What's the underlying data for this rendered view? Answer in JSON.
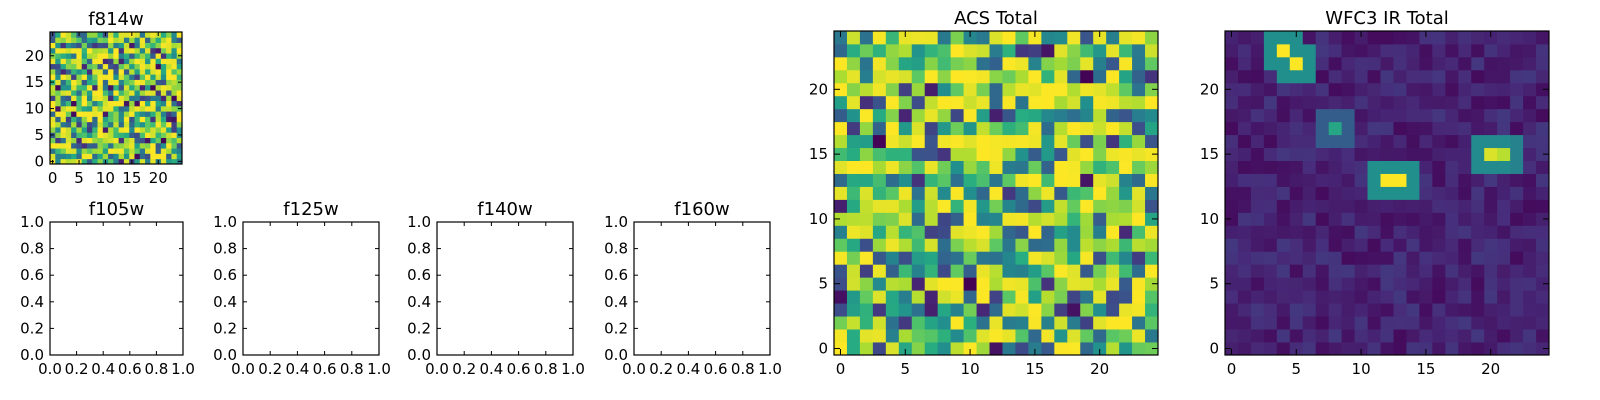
{
  "chart_data": [
    {
      "id": "f814w",
      "type": "heatmap",
      "title": "f814w",
      "grid_size": [
        25,
        25
      ],
      "xlim": [
        -0.5,
        24.5
      ],
      "ylim": [
        -0.5,
        24.5
      ],
      "xticks": [
        0,
        5,
        10,
        15,
        20
      ],
      "xtick_labels": [
        "0",
        "5",
        "10",
        "15",
        "20"
      ],
      "yticks": [
        0,
        5,
        10,
        15,
        20
      ],
      "ytick_labels": [
        "0",
        "5",
        "10",
        "15",
        "20"
      ],
      "colormap": "viridis",
      "pattern": "noise",
      "seed": 814
    },
    {
      "id": "f105w",
      "type": "empty",
      "title": "f105w",
      "xlim": [
        0,
        1
      ],
      "ylim": [
        0,
        1
      ],
      "xticks": [
        0,
        0.2,
        0.4,
        0.6,
        0.8,
        1.0
      ],
      "xtick_labels": [
        "0.0",
        "0.2",
        "0.4",
        "0.6",
        "0.8",
        "1.0"
      ],
      "yticks": [
        0,
        0.2,
        0.4,
        0.6,
        0.8,
        1.0
      ],
      "ytick_labels": [
        "0.0",
        "0.2",
        "0.4",
        "0.6",
        "0.8",
        "1.0"
      ]
    },
    {
      "id": "f125w",
      "type": "empty",
      "title": "f125w",
      "xlim": [
        0,
        1
      ],
      "ylim": [
        0,
        1
      ],
      "xticks": [
        0,
        0.2,
        0.4,
        0.6,
        0.8,
        1.0
      ],
      "xtick_labels": [
        "0.0",
        "0.2",
        "0.4",
        "0.6",
        "0.8",
        "1.0"
      ],
      "yticks": [
        0,
        0.2,
        0.4,
        0.6,
        0.8,
        1.0
      ],
      "ytick_labels": [
        "0.0",
        "0.2",
        "0.4",
        "0.6",
        "0.8",
        "1.0"
      ]
    },
    {
      "id": "f140w",
      "type": "empty",
      "title": "f140w",
      "xlim": [
        0,
        1
      ],
      "ylim": [
        0,
        1
      ],
      "xticks": [
        0,
        0.2,
        0.4,
        0.6,
        0.8,
        1.0
      ],
      "xtick_labels": [
        "0.0",
        "0.2",
        "0.4",
        "0.6",
        "0.8",
        "1.0"
      ],
      "yticks": [
        0,
        0.2,
        0.4,
        0.6,
        0.8,
        1.0
      ],
      "ytick_labels": [
        "0.0",
        "0.2",
        "0.4",
        "0.6",
        "0.8",
        "1.0"
      ]
    },
    {
      "id": "f160w",
      "type": "empty",
      "title": "f160w",
      "xlim": [
        0,
        1
      ],
      "ylim": [
        0,
        1
      ],
      "xticks": [
        0,
        0.2,
        0.4,
        0.6,
        0.8,
        1.0
      ],
      "xtick_labels": [
        "0.0",
        "0.2",
        "0.4",
        "0.6",
        "0.8",
        "1.0"
      ],
      "yticks": [
        0,
        0.2,
        0.4,
        0.6,
        0.8,
        1.0
      ],
      "ytick_labels": [
        "0.0",
        "0.2",
        "0.4",
        "0.6",
        "0.8",
        "1.0"
      ]
    },
    {
      "id": "acs-total",
      "type": "heatmap",
      "title": "ACS Total",
      "grid_size": [
        25,
        25
      ],
      "xlim": [
        -0.5,
        24.5
      ],
      "ylim": [
        -0.5,
        24.5
      ],
      "xticks": [
        0,
        5,
        10,
        15,
        20
      ],
      "xtick_labels": [
        "0",
        "5",
        "10",
        "15",
        "20"
      ],
      "yticks": [
        0,
        5,
        10,
        15,
        20
      ],
      "ytick_labels": [
        "0",
        "5",
        "10",
        "15",
        "20"
      ],
      "colormap": "viridis",
      "pattern": "noise",
      "seed": 4242
    },
    {
      "id": "wfc3-ir-total",
      "type": "heatmap",
      "title": "WFC3 IR Total",
      "grid_size": [
        25,
        25
      ],
      "xlim": [
        -0.5,
        24.5
      ],
      "ylim": [
        -0.5,
        24.5
      ],
      "xticks": [
        0,
        5,
        10,
        15,
        20
      ],
      "xtick_labels": [
        "0",
        "5",
        "10",
        "15",
        "20"
      ],
      "yticks": [
        0,
        5,
        10,
        15,
        20
      ],
      "ytick_labels": [
        "0",
        "5",
        "10",
        "15",
        "20"
      ],
      "colormap": "viridis",
      "pattern": "sources",
      "seed": 3131,
      "sources": [
        {
          "x": 4,
          "y": 23,
          "peak": 1.0
        },
        {
          "x": 5,
          "y": 22,
          "peak": 1.0
        },
        {
          "x": 12,
          "y": 13,
          "peak": 1.0
        },
        {
          "x": 13,
          "y": 13,
          "peak": 1.0
        },
        {
          "x": 20,
          "y": 15,
          "peak": 0.95
        },
        {
          "x": 21,
          "y": 15,
          "peak": 0.9
        },
        {
          "x": 8,
          "y": 17,
          "peak": 0.6
        }
      ]
    }
  ]
}
